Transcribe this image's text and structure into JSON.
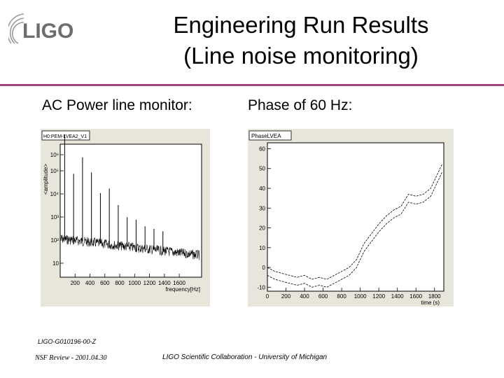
{
  "logo": {
    "text": "LIGO"
  },
  "slide": {
    "title_line1": "Engineering Run Results",
    "title_line2": "(Line noise monitoring)",
    "left_heading": "AC Power line monitor:",
    "right_heading": "Phase of 60 Hz:"
  },
  "chart_data": [
    {
      "type": "line",
      "title": "H0:PEM-LVEA2_V1",
      "xlabel": "frequency[Hz]",
      "ylabel": "<amplitude>",
      "xlim": [
        0,
        1900
      ],
      "x_ticks": [
        "200",
        "400",
        "600",
        "800",
        "1000",
        "1200",
        "1400",
        "1600"
      ],
      "y_ticks": [
        "10",
        "10²",
        "10³",
        "10⁴",
        "10⁵",
        "10⁶"
      ],
      "y_scale": "log",
      "peaks_hz": [
        60,
        180,
        300,
        420,
        540,
        660,
        780,
        900,
        1020,
        1140,
        1260,
        1380
      ],
      "colors": {
        "line": "#000000",
        "frame": "#ffffff",
        "background": "#e8e5db"
      }
    },
    {
      "type": "line",
      "title": "PhaseLVEA",
      "xlabel": "time (s)",
      "ylabel": "",
      "xlim": [
        0,
        1900
      ],
      "ylim": [
        -12,
        63
      ],
      "x_ticks": [
        "0",
        "200",
        "400",
        "600",
        "800",
        "1000",
        "1200",
        "1400",
        "1600",
        "1800"
      ],
      "y_ticks": [
        "-10",
        "0",
        "10",
        "20",
        "30",
        "40",
        "50",
        "60"
      ],
      "series": [
        {
          "x": [
            0,
            80,
            160,
            240,
            320,
            400,
            480,
            560,
            640,
            720,
            800,
            880,
            960,
            1040,
            1120,
            1200,
            1280,
            1360,
            1440,
            1520,
            1600,
            1680,
            1760,
            1840,
            1880
          ],
          "values": [
            0,
            -2,
            -3,
            -4,
            -5,
            -4,
            -6,
            -5,
            -6,
            -4,
            -2,
            0,
            4,
            12,
            17,
            22,
            26,
            29,
            31,
            37,
            36,
            37,
            40,
            48,
            52
          ]
        },
        {
          "x": [
            0,
            80,
            160,
            240,
            320,
            400,
            480,
            560,
            640,
            720,
            800,
            880,
            960,
            1040,
            1120,
            1200,
            1280,
            1360,
            1440,
            1520,
            1600,
            1680,
            1760,
            1840,
            1880
          ],
          "values": [
            -4,
            -6,
            -7,
            -8,
            -9,
            -8,
            -10,
            -9,
            -10,
            -8,
            -6,
            -4,
            0,
            8,
            13,
            18,
            22,
            25,
            27,
            33,
            32,
            33,
            36,
            44,
            48
          ]
        }
      ],
      "colors": {
        "line": "#000000",
        "frame": "#ffffff",
        "background": "#e8e5db"
      }
    }
  ],
  "footer": {
    "doc_id": "LIGO-G010196-00-Z",
    "left": "NSF Review - 2001.04.30",
    "center": "LIGO Scientific Collaboration - University of Michigan"
  }
}
